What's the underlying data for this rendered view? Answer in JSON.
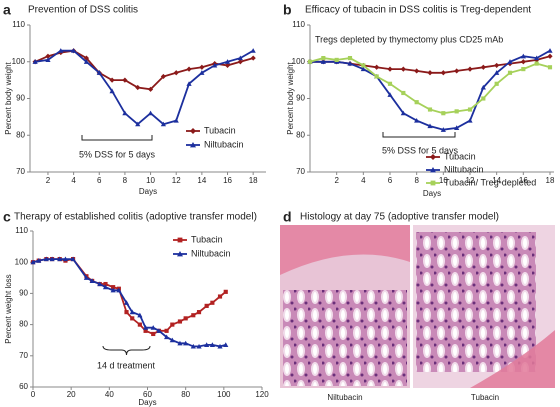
{
  "chart_data": [
    {
      "panel": "a",
      "type": "line",
      "title": "Prevention of DSS colitis",
      "x_label": "Days",
      "y_label": "Percent body weight",
      "annotation": "5% DSS for 5 days",
      "x": [
        1,
        2,
        3,
        4,
        5,
        6,
        7,
        8,
        9,
        10,
        11,
        12,
        13,
        14,
        15,
        16,
        17,
        18
      ],
      "xlim": [
        0.6,
        19
      ],
      "xticks": [
        2,
        4,
        6,
        8,
        10,
        12,
        14,
        16,
        18
      ],
      "ylim": [
        70,
        110
      ],
      "yticks": [
        70,
        80,
        90,
        100,
        110
      ],
      "series": [
        {
          "name": "Tubacin",
          "color": "#8b1a1a",
          "marker": "diamond",
          "values": [
            100,
            101.5,
            102.5,
            103,
            101,
            97,
            95,
            95,
            93,
            92.5,
            96,
            97,
            98,
            98.5,
            99.5,
            99,
            100,
            101
          ]
        },
        {
          "name": "Niltubacin",
          "color": "#1c2f9e",
          "marker": "triangle",
          "values": [
            100,
            100.5,
            103,
            103,
            100,
            97,
            92,
            86,
            83,
            86,
            83,
            84,
            94,
            97,
            99,
            100,
            101,
            103
          ]
        }
      ]
    },
    {
      "panel": "b",
      "type": "line",
      "title": "Efficacy of tubacin in DSS colitis is Treg-dependent",
      "subtitle": "Tregs depleted by thymectomy plus CD25 mAb",
      "x_label": "Days",
      "y_label": "Percent body weight",
      "annotation": "5% DSS for 5 days",
      "x": [
        0,
        1,
        2,
        3,
        4,
        5,
        6,
        7,
        8,
        9,
        10,
        11,
        12,
        13,
        14,
        15,
        16,
        17,
        18
      ],
      "xlim": [
        0,
        18.3
      ],
      "xticks": [
        2,
        4,
        6,
        8,
        10,
        12,
        14,
        16,
        18
      ],
      "ylim": [
        70,
        110
      ],
      "yticks": [
        70,
        80,
        90,
        100,
        110
      ],
      "series": [
        {
          "name": "Tubacin",
          "color": "#8b1a1a",
          "marker": "diamond",
          "values": [
            100,
            100,
            100,
            99.5,
            99,
            98.5,
            98,
            98,
            97.5,
            97,
            97,
            97.5,
            98,
            98.5,
            99,
            99.5,
            100,
            100.5,
            101.5
          ]
        },
        {
          "name": "Niltubacin",
          "color": "#1c2f9e",
          "marker": "triangle",
          "values": [
            100,
            100,
            100,
            99.5,
            98,
            96,
            91,
            86,
            84,
            82.5,
            81.5,
            82,
            84,
            93,
            97,
            100,
            101.5,
            101,
            103
          ]
        },
        {
          "name": "Tubacin/ Treg-depleted",
          "color": "#a6d15a",
          "marker": "square",
          "values": [
            100,
            101,
            100.5,
            101,
            99,
            96,
            94,
            91.5,
            89,
            87,
            86,
            86.5,
            87,
            90,
            94,
            97,
            98,
            99.5,
            98.5
          ]
        }
      ]
    },
    {
      "panel": "c",
      "type": "line",
      "title": "Therapy of established colitis (adoptive transfer model)",
      "x_label": "Days",
      "y_label": "Percent weight loss",
      "annotation": "14 d treatment",
      "x": [
        0,
        3,
        7,
        10,
        14,
        17,
        21,
        28,
        31,
        35,
        38,
        42,
        45,
        49,
        52,
        56,
        59,
        63,
        66,
        70,
        73,
        77,
        80,
        84,
        87,
        91,
        94,
        98,
        101
      ],
      "xlim": [
        0,
        120
      ],
      "xticks": [
        0,
        20,
        40,
        60,
        80,
        100,
        120
      ],
      "ylim": [
        60,
        110
      ],
      "yticks": [
        60,
        70,
        80,
        90,
        100,
        110
      ],
      "series": [
        {
          "name": "Tubacin",
          "color": "#b22222",
          "marker": "square",
          "values": [
            100,
            100.5,
            101,
            101,
            101,
            100.5,
            101,
            95.5,
            94,
            93,
            93,
            92,
            91.5,
            84,
            82,
            80,
            78,
            77,
            78,
            78,
            80,
            81,
            82,
            83,
            84,
            86,
            87,
            89,
            90.5
          ]
        },
        {
          "name": "Niltubacin",
          "color": "#1c2f9e",
          "marker": "triangle",
          "values": [
            100,
            100.5,
            101,
            101,
            101,
            101,
            101,
            95,
            94,
            93,
            92,
            91,
            91,
            87,
            84,
            83,
            79,
            79,
            78,
            76,
            75,
            74,
            74,
            73,
            73,
            73.5,
            73.5,
            73,
            73.5
          ]
        }
      ]
    }
  ],
  "histology": {
    "panel": "d",
    "title": "Histology at day 75 (adoptive transfer model)",
    "captions": [
      "Niltubacin",
      "Tubacin"
    ]
  }
}
